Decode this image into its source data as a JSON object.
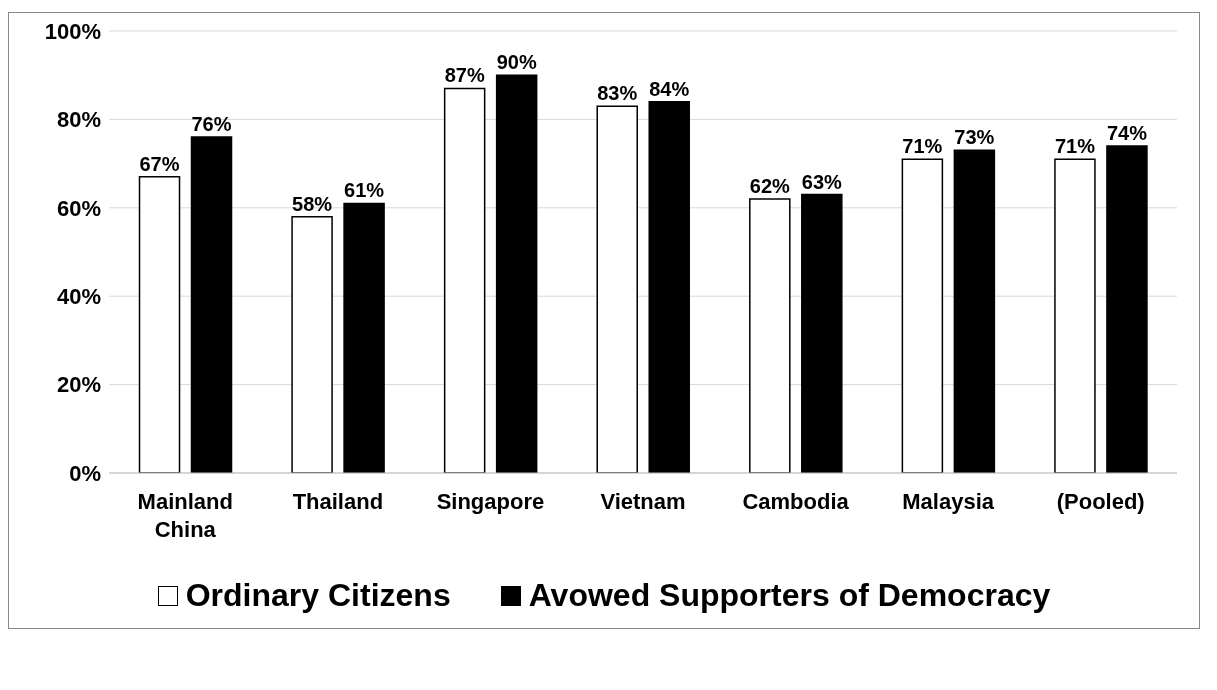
{
  "chart_data": {
    "type": "bar",
    "categories": [
      "Mainland China",
      "Thailand",
      "Singapore",
      "Vietnam",
      "Cambodia",
      "Malaysia",
      "(Pooled)"
    ],
    "series": [
      {
        "name": "Ordinary Citizens",
        "color": "#ffffff",
        "values": [
          67,
          58,
          87,
          83,
          62,
          71,
          71
        ],
        "value_labels": [
          "67%",
          "58%",
          "87%",
          "83%",
          "62%",
          "71%",
          "71%"
        ]
      },
      {
        "name": "Avowed Supporters of Democracy",
        "color": "#000000",
        "values": [
          76,
          61,
          90,
          84,
          63,
          73,
          74
        ],
        "value_labels": [
          "76%",
          "61%",
          "90%",
          "84%",
          "63%",
          "73%",
          "74%"
        ]
      }
    ],
    "ylim": [
      0,
      100
    ],
    "yticks": [
      {
        "value": 0,
        "label": "0%"
      },
      {
        "value": 20,
        "label": "20%"
      },
      {
        "value": 40,
        "label": "40%"
      },
      {
        "value": 60,
        "label": "60%"
      },
      {
        "value": 80,
        "label": "80%"
      },
      {
        "value": 100,
        "label": "100%"
      }
    ],
    "grid": "y",
    "legend": "bottom"
  }
}
